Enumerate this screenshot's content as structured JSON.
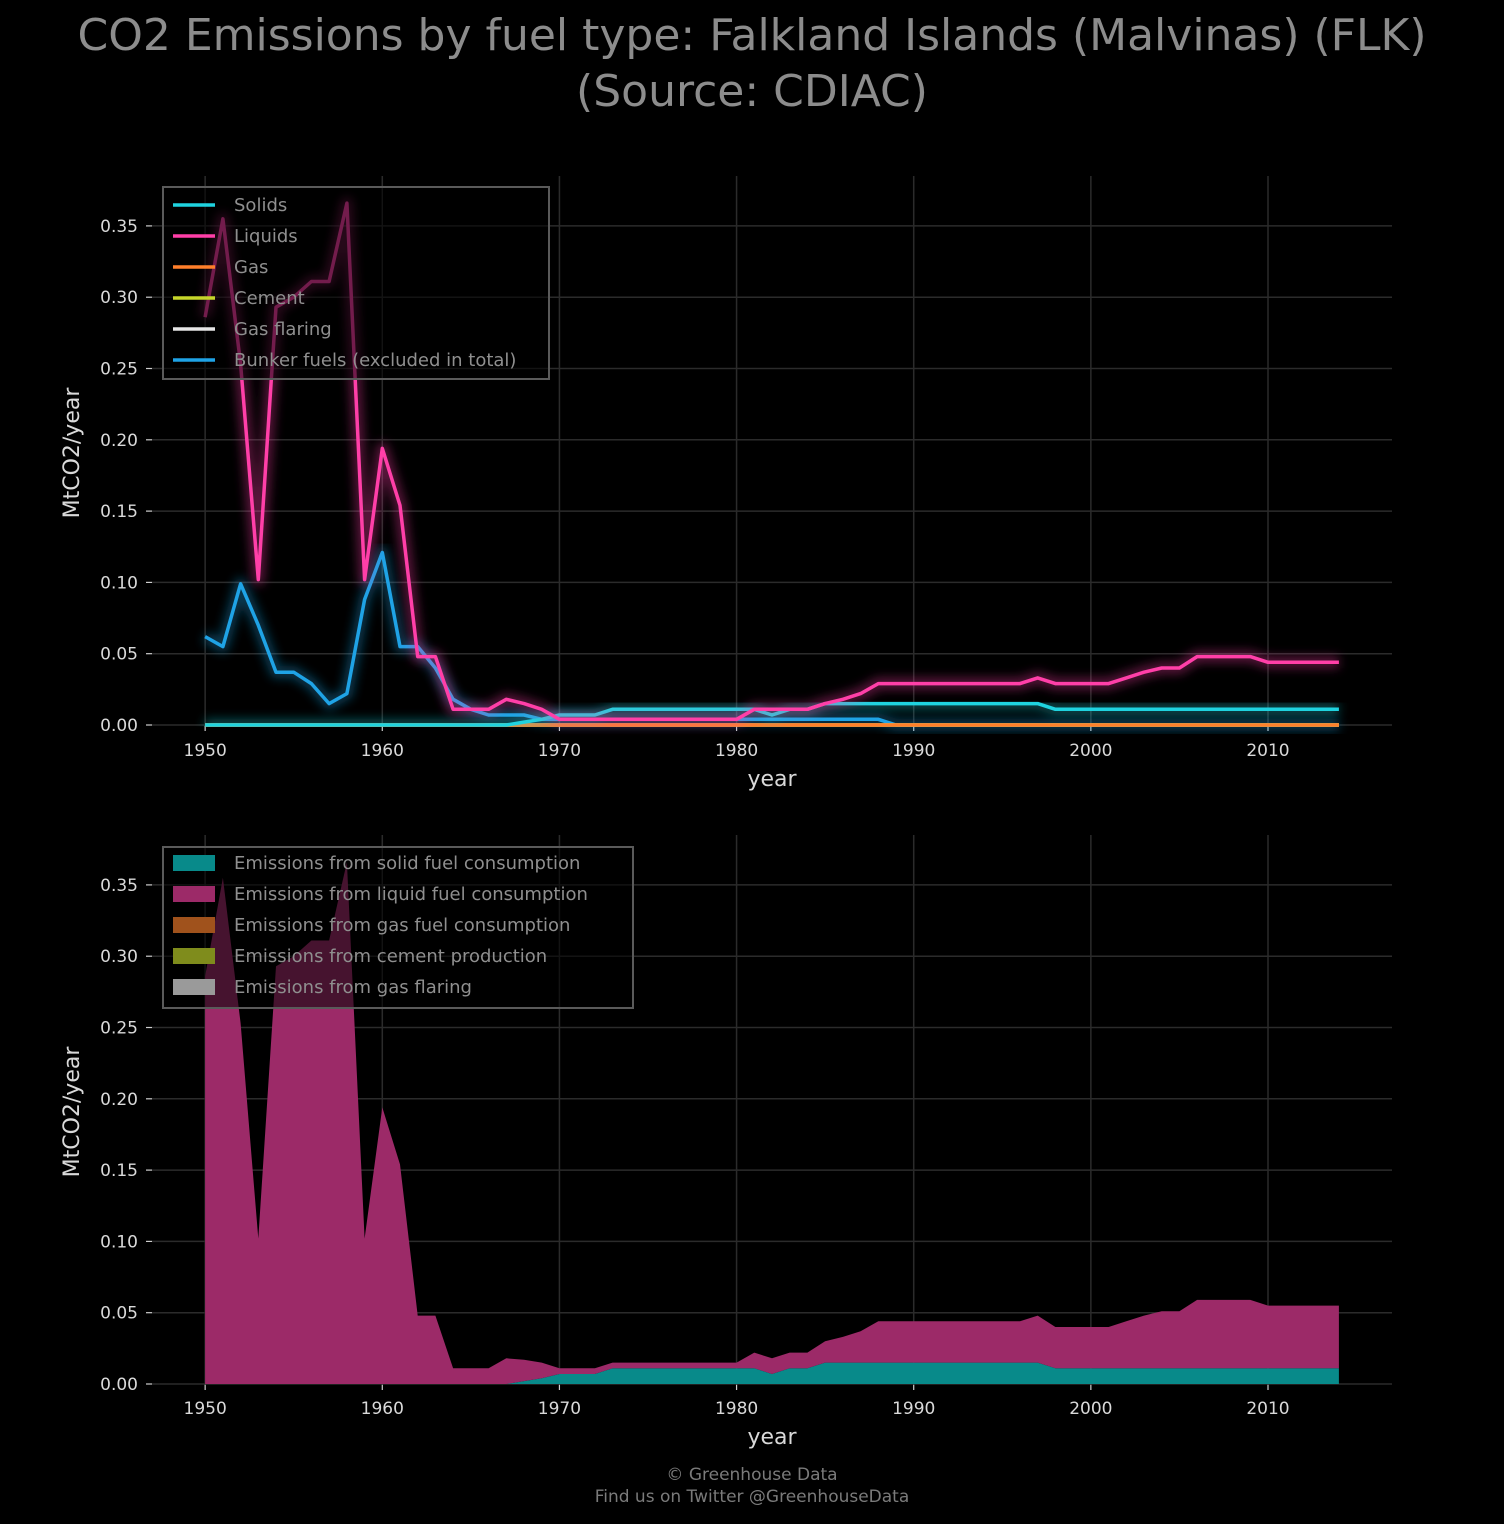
{
  "title_lines": [
    "CO2 Emissions by fuel type: Falkland Islands (Malvinas) (FLK)",
    "(Source: CDIAC)"
  ],
  "footer": {
    "line1": "© Greenhouse Data",
    "line2": "Find us on Twitter @GreenhouseData"
  },
  "chart_data": [
    {
      "type": "line",
      "xlabel": "year",
      "ylabel": "MtCO2/year",
      "xlim": [
        1947,
        2017
      ],
      "ylim": [
        0,
        0.385
      ],
      "xticks": [
        1950,
        1960,
        1970,
        1980,
        1990,
        2000,
        2010
      ],
      "yticks": [
        "0.00",
        "0.05",
        "0.10",
        "0.15",
        "0.20",
        "0.25",
        "0.30",
        "0.35"
      ],
      "grid": true,
      "legend_position": "top-left",
      "x": [
        1950,
        1951,
        1952,
        1953,
        1954,
        1955,
        1956,
        1957,
        1958,
        1959,
        1960,
        1961,
        1962,
        1963,
        1964,
        1965,
        1966,
        1967,
        1968,
        1969,
        1970,
        1971,
        1972,
        1973,
        1974,
        1975,
        1976,
        1977,
        1978,
        1979,
        1980,
        1981,
        1982,
        1983,
        1984,
        1985,
        1986,
        1987,
        1988,
        1989,
        1990,
        1991,
        1992,
        1993,
        1994,
        1995,
        1996,
        1997,
        1998,
        1999,
        2000,
        2001,
        2002,
        2003,
        2004,
        2005,
        2006,
        2007,
        2008,
        2009,
        2010,
        2011,
        2012,
        2013,
        2014
      ],
      "series": [
        {
          "name": "Solids",
          "color": "#1fd3df",
          "values": [
            0,
            0,
            0,
            0,
            0,
            0,
            0,
            0,
            0,
            0,
            0,
            0,
            0,
            0,
            0,
            0,
            0,
            0,
            0.002,
            0.004,
            0.007,
            0.007,
            0.007,
            0.011,
            0.011,
            0.011,
            0.011,
            0.011,
            0.011,
            0.011,
            0.011,
            0.011,
            0.007,
            0.011,
            0.011,
            0.015,
            0.015,
            0.015,
            0.015,
            0.015,
            0.015,
            0.015,
            0.015,
            0.015,
            0.015,
            0.015,
            0.015,
            0.015,
            0.011,
            0.011,
            0.011,
            0.011,
            0.011,
            0.011,
            0.011,
            0.011,
            0.011,
            0.011,
            0.011,
            0.011,
            0.011,
            0.011,
            0.011,
            0.011,
            0.011
          ]
        },
        {
          "name": "Liquids",
          "color": "#ff3fa8",
          "values": [
            0.286,
            0.355,
            0.253,
            0.102,
            0.293,
            0.3,
            0.311,
            0.311,
            0.366,
            0.102,
            0.194,
            0.154,
            0.048,
            0.048,
            0.011,
            0.011,
            0.011,
            0.018,
            0.015,
            0.011,
            0.004,
            0.004,
            0.004,
            0.004,
            0.004,
            0.004,
            0.004,
            0.004,
            0.004,
            0.004,
            0.004,
            0.011,
            0.011,
            0.011,
            0.011,
            0.015,
            0.018,
            0.022,
            0.029,
            0.029,
            0.029,
            0.029,
            0.029,
            0.029,
            0.029,
            0.029,
            0.029,
            0.033,
            0.029,
            0.029,
            0.029,
            0.029,
            0.033,
            0.037,
            0.04,
            0.04,
            0.048,
            0.048,
            0.048,
            0.048,
            0.044,
            0.044,
            0.044,
            0.044,
            0.044
          ]
        },
        {
          "name": "Gas",
          "color": "#ff7f2a",
          "values": [
            0,
            0,
            0,
            0,
            0,
            0,
            0,
            0,
            0,
            0,
            0,
            0,
            0,
            0,
            0,
            0,
            0,
            0,
            0,
            0,
            0,
            0,
            0,
            0,
            0,
            0,
            0,
            0,
            0,
            0,
            0,
            0,
            0,
            0,
            0,
            0,
            0,
            0,
            0,
            0,
            0,
            0,
            0,
            0,
            0,
            0,
            0,
            0,
            0,
            0,
            0,
            0,
            0,
            0,
            0,
            0,
            0,
            0,
            0,
            0,
            0,
            0,
            0,
            0,
            0
          ]
        },
        {
          "name": "Cement",
          "color": "#c6d62a",
          "values": [
            0,
            0,
            0,
            0,
            0,
            0,
            0,
            0,
            0,
            0,
            0,
            0,
            0,
            0,
            0,
            0,
            0,
            0,
            0,
            0,
            0,
            0,
            0,
            0,
            0,
            0,
            0,
            0,
            0,
            0,
            0,
            0,
            0,
            0,
            0,
            0,
            0,
            0,
            0,
            0,
            0,
            0,
            0,
            0,
            0,
            0,
            0,
            0,
            0,
            0,
            0,
            0,
            0,
            0,
            0,
            0,
            0,
            0,
            0,
            0,
            0,
            0,
            0,
            0,
            0
          ]
        },
        {
          "name": "Gas flaring",
          "color": "#e6e6e6",
          "values": [
            0,
            0,
            0,
            0,
            0,
            0,
            0,
            0,
            0,
            0,
            0,
            0,
            0,
            0,
            0,
            0,
            0,
            0,
            0,
            0,
            0,
            0,
            0,
            0,
            0,
            0,
            0,
            0,
            0,
            0,
            0,
            0,
            0,
            0,
            0,
            0,
            0,
            0,
            0,
            0,
            0,
            0,
            0,
            0,
            0,
            0,
            0,
            0,
            0,
            0,
            0,
            0,
            0,
            0,
            0,
            0,
            0,
            0,
            0,
            0,
            0,
            0,
            0,
            0,
            0
          ]
        },
        {
          "name": "Bunker fuels (excluded in total)",
          "color": "#1fa3e6",
          "values": [
            0.062,
            0.055,
            0.099,
            0.07,
            0.037,
            0.037,
            0.029,
            0.015,
            0.022,
            0.088,
            0.121,
            0.055,
            0.055,
            0.04,
            0.018,
            0.011,
            0.007,
            0.007,
            0.007,
            0.004,
            0.004,
            0.004,
            0.004,
            0.004,
            0.004,
            0.004,
            0.004,
            0.004,
            0.004,
            0.004,
            0.004,
            0.004,
            0.004,
            0.004,
            0.004,
            0.004,
            0.004,
            0.004,
            0.004,
            0,
            0,
            0,
            0,
            0,
            0,
            0,
            0,
            0,
            0,
            0,
            0,
            0,
            0,
            0,
            0,
            0,
            0,
            0,
            0,
            0,
            0,
            0,
            0,
            0,
            0
          ]
        }
      ]
    },
    {
      "type": "area",
      "stacked": true,
      "xlabel": "year",
      "ylabel": "MtCO2/year",
      "xlim": [
        1947,
        2017
      ],
      "ylim": [
        0,
        0.385
      ],
      "xticks": [
        1950,
        1960,
        1970,
        1980,
        1990,
        2000,
        2010
      ],
      "yticks": [
        "0.00",
        "0.05",
        "0.10",
        "0.15",
        "0.20",
        "0.25",
        "0.30",
        "0.35"
      ],
      "grid": true,
      "legend_position": "top-left",
      "series": [
        {
          "name": "Emissions from solid fuel consumption",
          "color": "#088a8a",
          "ref": "Solids"
        },
        {
          "name": "Emissions from liquid fuel consumption",
          "color": "#9c2a68",
          "ref": "Liquids"
        },
        {
          "name": "Emissions from gas fuel consumption",
          "color": "#a0521c",
          "ref": "Gas"
        },
        {
          "name": "Emissions from cement production",
          "color": "#7f8c1c",
          "ref": "Cement"
        },
        {
          "name": "Emissions from gas flaring",
          "color": "#9a9a9a",
          "ref": "Gas flaring"
        }
      ]
    }
  ]
}
